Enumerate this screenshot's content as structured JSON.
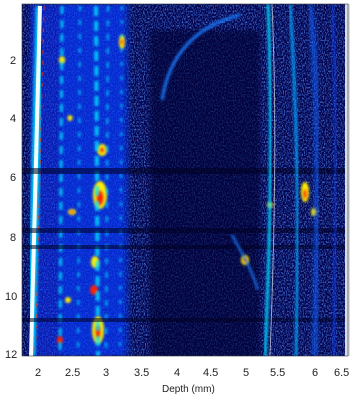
{
  "figure": {
    "xlabel": "Depth (mm)",
    "x_ticks": [
      "2",
      "2.5",
      "3",
      "3.5",
      "4",
      "4.5",
      "5",
      "5.5",
      "6",
      "6.5"
    ],
    "y_ticks": [
      "2",
      "4",
      "6",
      "8",
      "10",
      "12"
    ],
    "colormap": {
      "low": "#00003a",
      "mid": "#1030ff",
      "bright": "#00e0ff",
      "hot_mid": "#ffee00",
      "hot": "#ff2000",
      "saturated": "#ffffff"
    }
  }
}
